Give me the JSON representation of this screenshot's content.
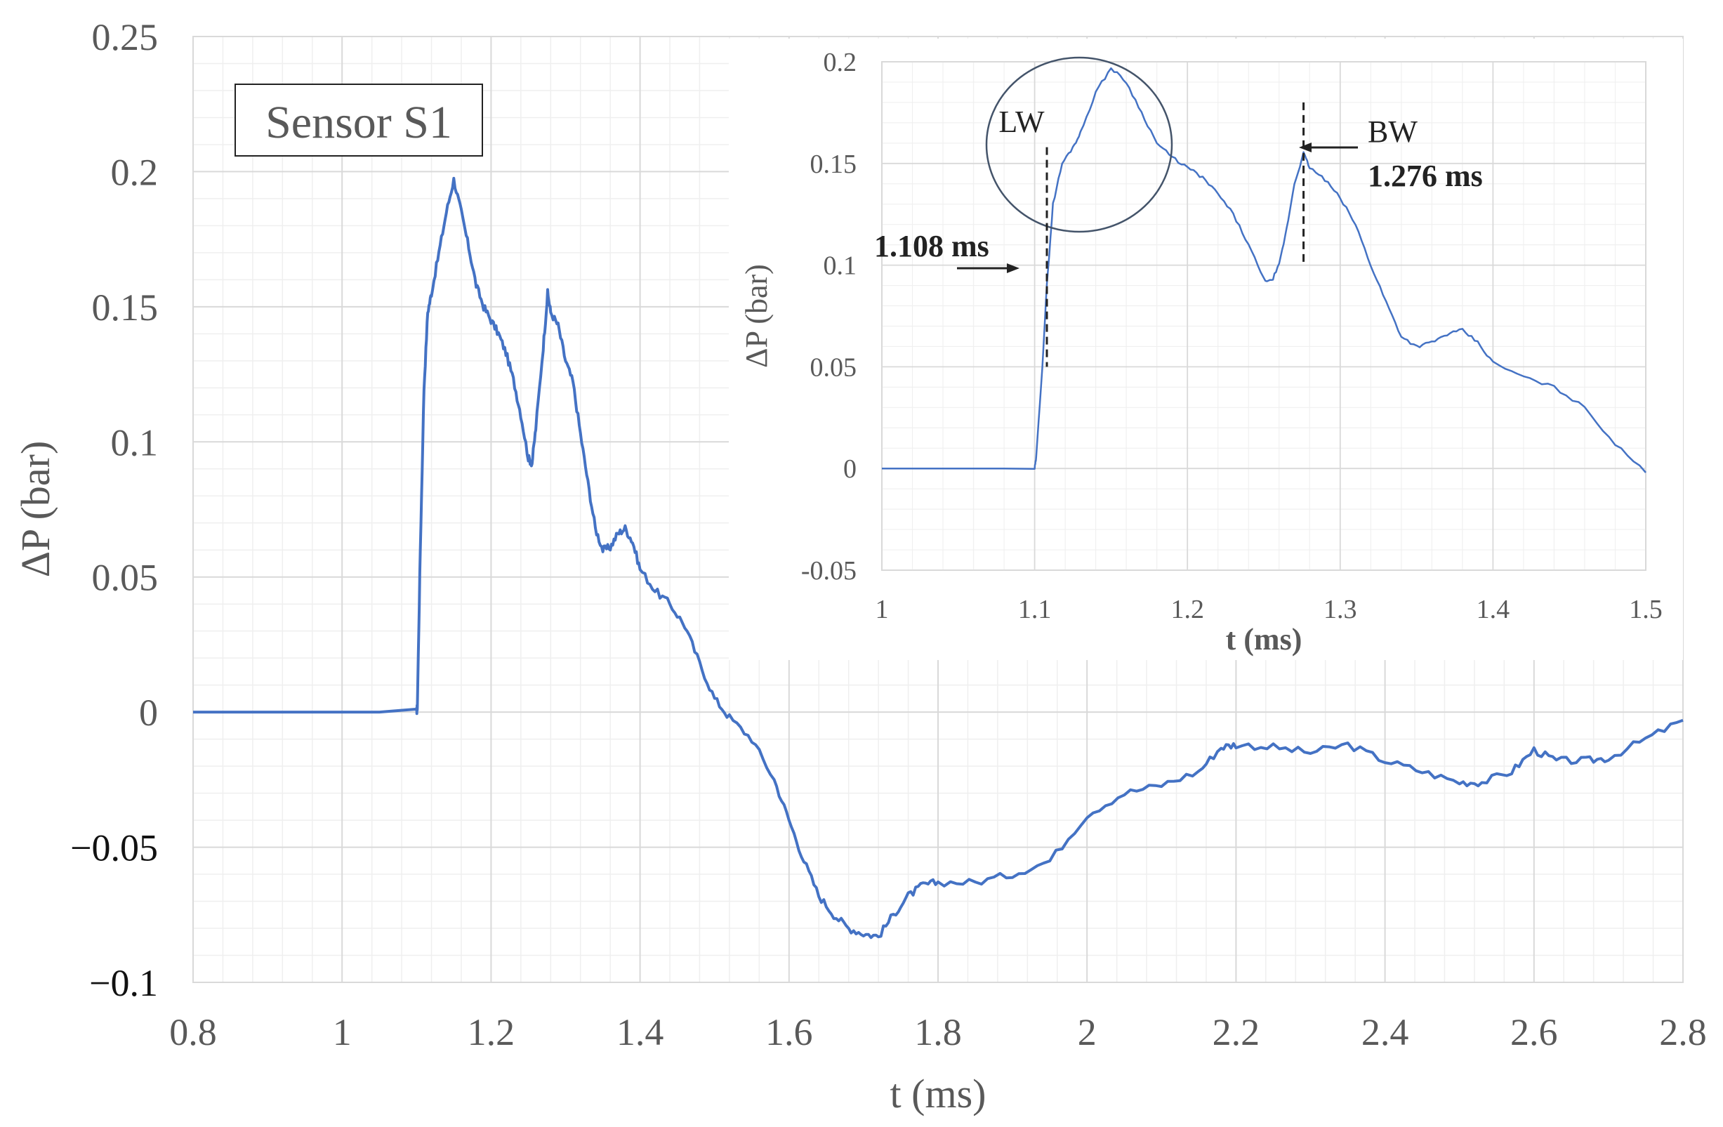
{
  "chart_data": [
    {
      "type": "line",
      "label_box": "Sensor S1",
      "xlabel": "t (ms)",
      "ylabel": "ΔP (bar)",
      "xlim": [
        0.8,
        2.8
      ],
      "ylim": [
        -0.1,
        0.25
      ],
      "xticks": [
        "0.8",
        "1",
        "1.2",
        "1.4",
        "1.6",
        "1.8",
        "2",
        "2.2",
        "2.4",
        "2.6",
        "2.8"
      ],
      "xtick_values": [
        0.8,
        1.0,
        1.2,
        1.4,
        1.6,
        1.8,
        2.0,
        2.2,
        2.4,
        2.6,
        2.8
      ],
      "yticks": [
        "0.25",
        "0.2",
        "0.15",
        "0.1",
        "0.05",
        "0",
        "−0.05",
        "−0.1"
      ],
      "ytick_values": [
        0.25,
        0.2,
        0.15,
        0.1,
        0.05,
        0,
        -0.05,
        -0.1
      ],
      "grid": true,
      "series": [
        {
          "color": "#4472c4",
          "points": [
            [
              0.8,
              0.0
            ],
            [
              1.1,
              0.0
            ],
            [
              1.101,
              0.002
            ],
            [
              1.105,
              0.06
            ],
            [
              1.11,
              0.12
            ],
            [
              1.115,
              0.148
            ],
            [
              1.12,
              0.155
            ],
            [
              1.13,
              0.17
            ],
            [
              1.14,
              0.185
            ],
            [
              1.15,
              0.197
            ],
            [
              1.16,
              0.185
            ],
            [
              1.17,
              0.172
            ],
            [
              1.18,
              0.158
            ],
            [
              1.19,
              0.15
            ],
            [
              1.2,
              0.145
            ],
            [
              1.21,
              0.14
            ],
            [
              1.22,
              0.133
            ],
            [
              1.23,
              0.123
            ],
            [
              1.24,
              0.11
            ],
            [
              1.25,
              0.094
            ],
            [
              1.255,
              0.092
            ],
            [
              1.26,
              0.105
            ],
            [
              1.27,
              0.135
            ],
            [
              1.276,
              0.155
            ],
            [
              1.28,
              0.148
            ],
            [
              1.29,
              0.143
            ],
            [
              1.3,
              0.13
            ],
            [
              1.31,
              0.122
            ],
            [
              1.32,
              0.103
            ],
            [
              1.33,
              0.085
            ],
            [
              1.34,
              0.068
            ],
            [
              1.35,
              0.06
            ],
            [
              1.36,
              0.061
            ],
            [
              1.37,
              0.066
            ],
            [
              1.38,
              0.068
            ],
            [
              1.39,
              0.063
            ],
            [
              1.4,
              0.053
            ],
            [
              1.42,
              0.045
            ],
            [
              1.44,
              0.04
            ],
            [
              1.46,
              0.032
            ],
            [
              1.48,
              0.018
            ],
            [
              1.5,
              0.005
            ],
            [
              1.52,
              -0.002
            ],
            [
              1.55,
              -0.01
            ],
            [
              1.58,
              -0.025
            ],
            [
              1.6,
              -0.04
            ],
            [
              1.62,
              -0.055
            ],
            [
              1.64,
              -0.068
            ],
            [
              1.66,
              -0.075
            ],
            [
              1.68,
              -0.08
            ],
            [
              1.7,
              -0.082
            ],
            [
              1.72,
              -0.083
            ],
            [
              1.74,
              -0.075
            ],
            [
              1.76,
              -0.068
            ],
            [
              1.78,
              -0.064
            ],
            [
              1.8,
              -0.063
            ],
            [
              1.85,
              -0.063
            ],
            [
              1.9,
              -0.06
            ],
            [
              1.95,
              -0.055
            ],
            [
              2.0,
              -0.038
            ],
            [
              2.05,
              -0.03
            ],
            [
              2.1,
              -0.027
            ],
            [
              2.15,
              -0.022
            ],
            [
              2.18,
              -0.013
            ],
            [
              2.2,
              -0.012
            ],
            [
              2.25,
              -0.013
            ],
            [
              2.3,
              -0.015
            ],
            [
              2.35,
              -0.012
            ],
            [
              2.4,
              -0.018
            ],
            [
              2.45,
              -0.022
            ],
            [
              2.5,
              -0.026
            ],
            [
              2.53,
              -0.026
            ],
            [
              2.57,
              -0.022
            ],
            [
              2.6,
              -0.014
            ],
            [
              2.63,
              -0.018
            ],
            [
              2.67,
              -0.018
            ],
            [
              2.7,
              -0.017
            ],
            [
              2.75,
              -0.01
            ],
            [
              2.8,
              -0.003
            ]
          ]
        }
      ]
    },
    {
      "type": "line",
      "xlabel": "t (ms)",
      "ylabel": "ΔP (bar)",
      "xlim": [
        1.0,
        1.5
      ],
      "ylim": [
        -0.05,
        0.2
      ],
      "xticks": [
        "1",
        "1.1",
        "1.2",
        "1.3",
        "1.4",
        "1.5"
      ],
      "xtick_values": [
        1.0,
        1.1,
        1.2,
        1.3,
        1.4,
        1.5
      ],
      "yticks": [
        "0.2",
        "0.15",
        "0.1",
        "0.05",
        "0",
        "-0.05"
      ],
      "ytick_values": [
        0.2,
        0.15,
        0.1,
        0.05,
        0,
        -0.05
      ],
      "grid": true,
      "annotations": {
        "lw_label": "LW",
        "lw_time_label": "1.108 ms",
        "lw_time": 1.108,
        "bw_label": "BW",
        "bw_time_label": "1.276 ms",
        "bw_time": 1.276
      },
      "series": [
        {
          "color": "#4472c4",
          "points": [
            [
              1.0,
              0.0
            ],
            [
              1.1,
              0.0
            ],
            [
              1.101,
              0.005
            ],
            [
              1.105,
              0.05
            ],
            [
              1.108,
              0.09
            ],
            [
              1.112,
              0.13
            ],
            [
              1.118,
              0.15
            ],
            [
              1.125,
              0.158
            ],
            [
              1.13,
              0.165
            ],
            [
              1.14,
              0.185
            ],
            [
              1.15,
              0.197
            ],
            [
              1.16,
              0.19
            ],
            [
              1.17,
              0.175
            ],
            [
              1.18,
              0.16
            ],
            [
              1.19,
              0.153
            ],
            [
              1.2,
              0.148
            ],
            [
              1.21,
              0.143
            ],
            [
              1.22,
              0.135
            ],
            [
              1.23,
              0.125
            ],
            [
              1.24,
              0.11
            ],
            [
              1.25,
              0.093
            ],
            [
              1.255,
              0.092
            ],
            [
              1.26,
              0.1
            ],
            [
              1.265,
              0.118
            ],
            [
              1.27,
              0.14
            ],
            [
              1.276,
              0.155
            ],
            [
              1.28,
              0.148
            ],
            [
              1.29,
              0.142
            ],
            [
              1.3,
              0.133
            ],
            [
              1.31,
              0.12
            ],
            [
              1.32,
              0.1
            ],
            [
              1.33,
              0.082
            ],
            [
              1.34,
              0.065
            ],
            [
              1.35,
              0.06
            ],
            [
              1.36,
              0.062
            ],
            [
              1.37,
              0.066
            ],
            [
              1.38,
              0.068
            ],
            [
              1.39,
              0.062
            ],
            [
              1.4,
              0.052
            ],
            [
              1.42,
              0.045
            ],
            [
              1.44,
              0.04
            ],
            [
              1.46,
              0.03
            ],
            [
              1.48,
              0.012
            ],
            [
              1.5,
              -0.002
            ]
          ]
        }
      ]
    }
  ]
}
